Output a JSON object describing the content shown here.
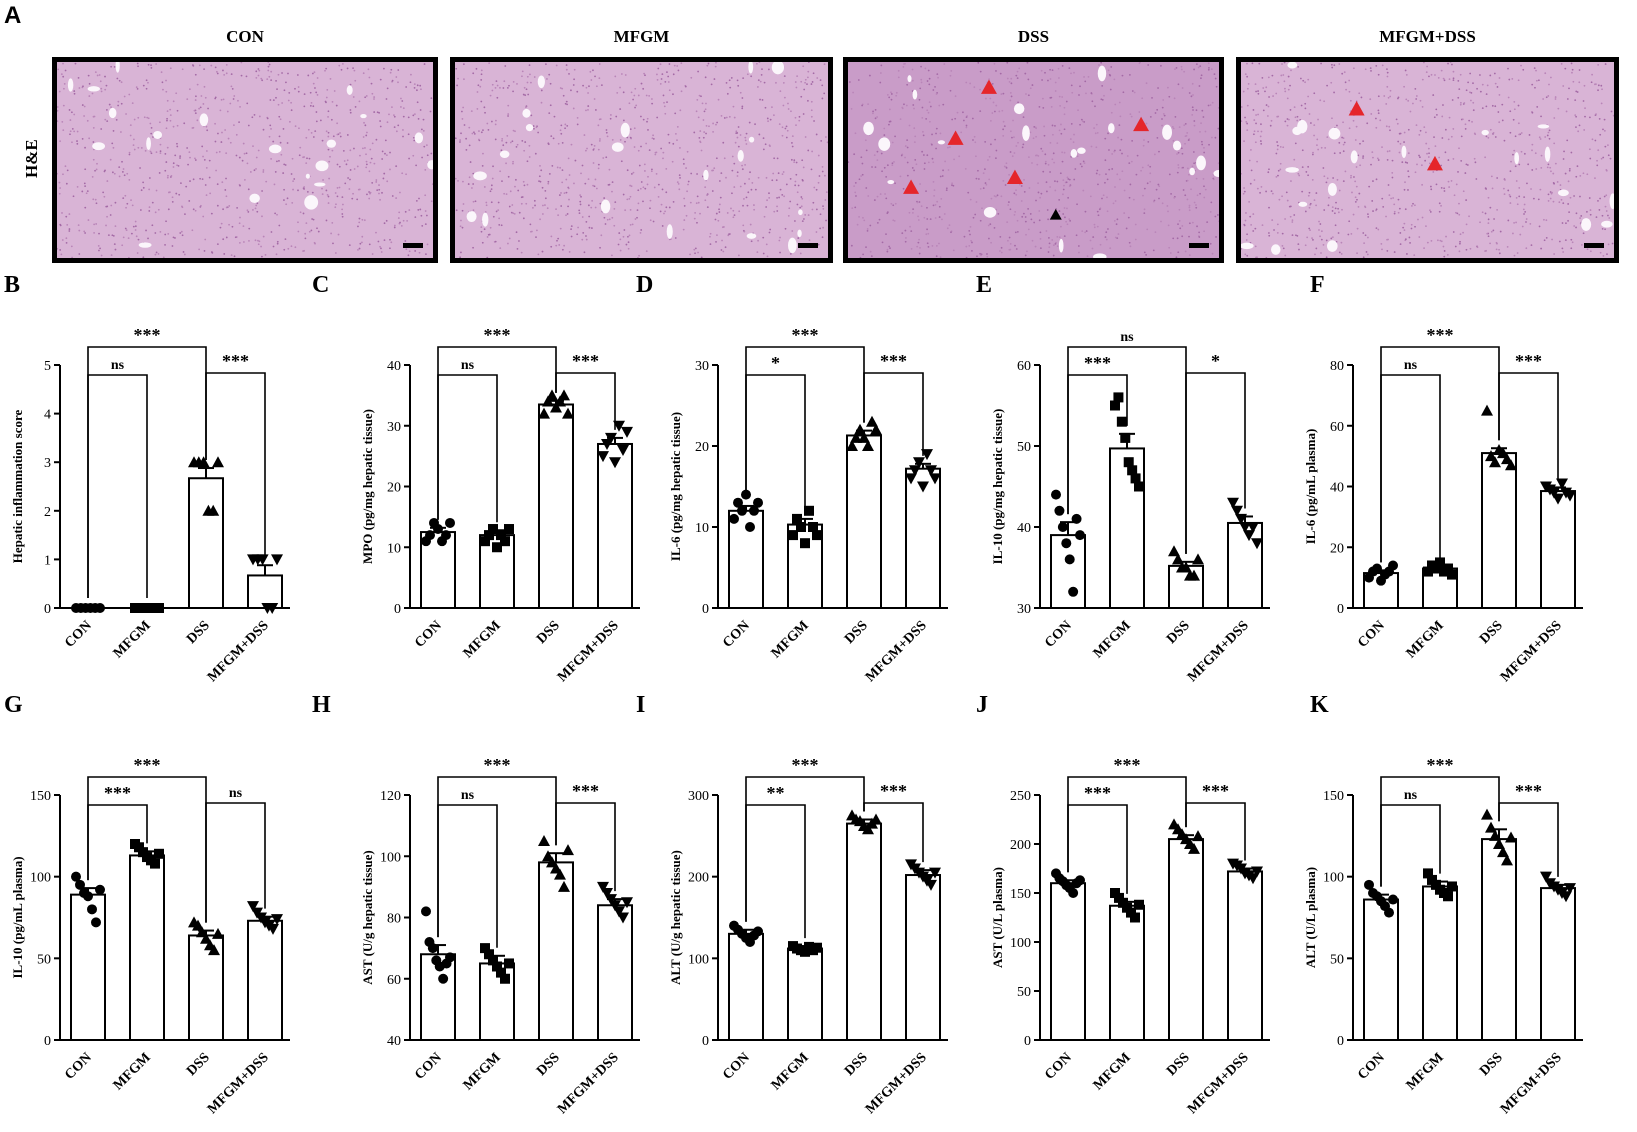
{
  "panel_a": {
    "label": "A",
    "row_label": "H&E",
    "images": [
      {
        "title": "CON",
        "red_markers": [],
        "black_markers": []
      },
      {
        "title": "MFGM",
        "red_markers": [],
        "black_markers": []
      },
      {
        "title": "DSS",
        "red_markers": [
          [
            0.38,
            0.13
          ],
          [
            0.29,
            0.39
          ],
          [
            0.79,
            0.32
          ],
          [
            0.45,
            0.59
          ],
          [
            0.17,
            0.64
          ]
        ],
        "black_markers": [
          [
            0.56,
            0.78
          ]
        ]
      },
      {
        "title": "MFGM+DSS",
        "red_markers": [
          [
            0.31,
            0.24
          ],
          [
            0.52,
            0.52
          ]
        ],
        "black_markers": []
      }
    ]
  },
  "chart_data": [
    {
      "id": "B",
      "type": "bar",
      "ylabel": "Hepatic inflammation score",
      "ylim": [
        0,
        5
      ],
      "ticks": [
        0,
        1,
        2,
        3,
        4,
        5
      ],
      "categories": [
        "CON",
        "MFGM",
        "DSS",
        "MFGM+DSS"
      ],
      "values": [
        0,
        0,
        2.67,
        0.67
      ],
      "sem": [
        0,
        0,
        0.21,
        0.21
      ],
      "points": [
        [
          0,
          0,
          0,
          0,
          0,
          0
        ],
        [
          0,
          0,
          0,
          0,
          0,
          0
        ],
        [
          3,
          3,
          3,
          2,
          2,
          3
        ],
        [
          1,
          1,
          1,
          0,
          0,
          1
        ]
      ],
      "sig": [
        {
          "a": 0,
          "b": 2,
          "label": "***",
          "level": 1
        },
        {
          "a": 0,
          "b": 1,
          "label": "ns",
          "level": 0
        },
        {
          "a": 2,
          "b": 3,
          "label": "***",
          "level": 0
        }
      ]
    },
    {
      "id": "C",
      "type": "bar",
      "ylabel": "MPO (pg/mg hepatic tissue)",
      "ylim": [
        0,
        40
      ],
      "ticks": [
        0,
        10,
        20,
        30,
        40
      ],
      "categories": [
        "CON",
        "MFGM",
        "DSS",
        "MFGM+DSS"
      ],
      "values": [
        12.5,
        12,
        33.5,
        27
      ],
      "sem": [
        0.7,
        0.8,
        0.6,
        1.0
      ],
      "points": [
        [
          11,
          12,
          14,
          13,
          11,
          12,
          14
        ],
        [
          11,
          12,
          13,
          10,
          12,
          11,
          13
        ],
        [
          32,
          34,
          35,
          33,
          34,
          35,
          32
        ],
        [
          25,
          27,
          28,
          24,
          30,
          26,
          29
        ]
      ],
      "sig": [
        {
          "a": 0,
          "b": 2,
          "label": "***",
          "level": 1
        },
        {
          "a": 0,
          "b": 1,
          "label": "ns",
          "level": 0
        },
        {
          "a": 2,
          "b": 3,
          "label": "***",
          "level": 0
        }
      ]
    },
    {
      "id": "D",
      "type": "bar",
      "ylabel": "IL-6 (pg/mg hepatic tissue)",
      "ylim": [
        0,
        30
      ],
      "ticks": [
        0,
        10,
        20,
        30
      ],
      "categories": [
        "CON",
        "MFGM",
        "DSS",
        "MFGM+DSS"
      ],
      "values": [
        12,
        10.3,
        21.3,
        17.2
      ],
      "sem": [
        0.6,
        0.7,
        0.6,
        0.6
      ],
      "points": [
        [
          11,
          13,
          12,
          14,
          10,
          12,
          13
        ],
        [
          9,
          11,
          10,
          8,
          12,
          10,
          9
        ],
        [
          20,
          21,
          22,
          21,
          20,
          23,
          22
        ],
        [
          16,
          17,
          18,
          15,
          19,
          17,
          16
        ]
      ],
      "sig": [
        {
          "a": 0,
          "b": 2,
          "label": "***",
          "level": 1
        },
        {
          "a": 0,
          "b": 1,
          "label": "*",
          "level": 0
        },
        {
          "a": 2,
          "b": 3,
          "label": "***",
          "level": 0
        }
      ]
    },
    {
      "id": "E",
      "type": "bar",
      "ylabel": "IL-10 (pg/mg hepatic tissue)",
      "ylim": [
        30,
        60
      ],
      "ticks": [
        30,
        40,
        50,
        60
      ],
      "categories": [
        "CON",
        "MFGM",
        "DSS",
        "MFGM+DSS"
      ],
      "values": [
        39,
        49.7,
        35.2,
        40.5
      ],
      "sem": [
        1.6,
        1.8,
        0.5,
        0.8
      ],
      "points": [
        [
          44,
          42,
          40,
          38,
          36,
          32,
          41,
          39
        ],
        [
          55,
          56,
          53,
          51,
          48,
          47,
          46,
          45
        ],
        [
          37,
          36,
          35,
          35,
          34,
          34,
          36
        ],
        [
          43,
          42,
          41,
          40,
          39,
          40,
          38
        ]
      ],
      "sig": [
        {
          "a": 0,
          "b": 2,
          "label": "ns",
          "level": 1
        },
        {
          "a": 0,
          "b": 1,
          "label": "***",
          "level": 0
        },
        {
          "a": 2,
          "b": 3,
          "label": "*",
          "level": 0
        }
      ]
    },
    {
      "id": "F",
      "type": "bar",
      "ylabel": "IL-6 (pg/mL plasma)",
      "ylim": [
        0,
        80
      ],
      "ticks": [
        0,
        20,
        40,
        60,
        80
      ],
      "categories": [
        "CON",
        "MFGM",
        "DSS",
        "MFGM+DSS"
      ],
      "values": [
        11.5,
        13,
        51,
        38.5
      ],
      "sem": [
        0.9,
        0.8,
        1.6,
        1.2
      ],
      "points": [
        [
          10,
          12,
          13,
          9,
          11,
          12,
          14
        ],
        [
          12,
          14,
          13,
          15,
          12,
          13,
          11
        ],
        [
          65,
          50,
          48,
          52,
          51,
          49,
          47
        ],
        [
          40,
          39,
          38,
          36,
          41,
          38,
          37
        ]
      ],
      "sig": [
        {
          "a": 0,
          "b": 2,
          "label": "***",
          "level": 1
        },
        {
          "a": 0,
          "b": 1,
          "label": "ns",
          "level": 0
        },
        {
          "a": 2,
          "b": 3,
          "label": "***",
          "level": 0
        }
      ]
    },
    {
      "id": "G",
      "type": "bar",
      "ylabel": "IL-10 (pg/mL plasma)",
      "ylim": [
        0,
        150
      ],
      "ticks": [
        0,
        50,
        100,
        150
      ],
      "categories": [
        "CON",
        "MFGM",
        "DSS",
        "MFGM+DSS"
      ],
      "values": [
        89,
        113,
        64,
        73
      ],
      "sem": [
        4,
        2.5,
        3,
        2.5
      ],
      "points": [
        [
          100,
          95,
          90,
          88,
          80,
          72,
          92
        ],
        [
          120,
          118,
          115,
          112,
          110,
          108,
          114
        ],
        [
          72,
          70,
          66,
          62,
          58,
          55,
          65
        ],
        [
          82,
          78,
          75,
          72,
          70,
          68,
          74
        ]
      ],
      "sig": [
        {
          "a": 0,
          "b": 2,
          "label": "***",
          "level": 1
        },
        {
          "a": 0,
          "b": 1,
          "label": "***",
          "level": 0
        },
        {
          "a": 2,
          "b": 3,
          "label": "ns",
          "level": 0
        }
      ]
    },
    {
      "id": "H",
      "type": "bar",
      "ylabel": "AST (U/g hepatic tissue)",
      "ylim": [
        40,
        120
      ],
      "ticks": [
        40,
        60,
        80,
        100,
        120
      ],
      "categories": [
        "CON",
        "MFGM",
        "DSS",
        "MFGM+DSS"
      ],
      "values": [
        68,
        65,
        98,
        84
      ],
      "sem": [
        3,
        2.5,
        3,
        2
      ],
      "points": [
        [
          82,
          72,
          70,
          66,
          64,
          60,
          65,
          67
        ],
        [
          70,
          68,
          66,
          64,
          62,
          60,
          65
        ],
        [
          105,
          100,
          98,
          96,
          94,
          90,
          102
        ],
        [
          90,
          88,
          86,
          84,
          82,
          80,
          85
        ]
      ],
      "sig": [
        {
          "a": 0,
          "b": 2,
          "label": "***",
          "level": 1
        },
        {
          "a": 0,
          "b": 1,
          "label": "ns",
          "level": 0
        },
        {
          "a": 2,
          "b": 3,
          "label": "***",
          "level": 0
        }
      ]
    },
    {
      "id": "I",
      "type": "bar",
      "ylabel": "ALT (U/g hepatic tissue)",
      "ylim": [
        0,
        300
      ],
      "ticks": [
        0,
        100,
        200,
        300
      ],
      "categories": [
        "CON",
        "MFGM",
        "DSS",
        "MFGM+DSS"
      ],
      "values": [
        130,
        112,
        265,
        202
      ],
      "sem": [
        5,
        3,
        5,
        6
      ],
      "points": [
        [
          140,
          135,
          130,
          125,
          120,
          128,
          133
        ],
        [
          115,
          112,
          110,
          108,
          114,
          110,
          113
        ],
        [
          275,
          270,
          268,
          262,
          258,
          265,
          270
        ],
        [
          215,
          210,
          205,
          200,
          195,
          190,
          205
        ]
      ],
      "sig": [
        {
          "a": 0,
          "b": 2,
          "label": "***",
          "level": 1
        },
        {
          "a": 0,
          "b": 1,
          "label": "**",
          "level": 0
        },
        {
          "a": 2,
          "b": 3,
          "label": "***",
          "level": 0
        }
      ]
    },
    {
      "id": "J",
      "type": "bar",
      "ylabel": "AST (U/L plasma)",
      "ylim": [
        0,
        250
      ],
      "ticks": [
        0,
        50,
        100,
        150,
        200,
        250
      ],
      "categories": [
        "CON",
        "MFGM",
        "DSS",
        "MFGM+DSS"
      ],
      "values": [
        160,
        137,
        205,
        172
      ],
      "sem": [
        3,
        4,
        4,
        3
      ],
      "points": [
        [
          170,
          165,
          162,
          158,
          155,
          150,
          160,
          163
        ],
        [
          150,
          145,
          140,
          135,
          130,
          125,
          138
        ],
        [
          220,
          215,
          210,
          205,
          200,
          195,
          208
        ],
        [
          180,
          178,
          175,
          170,
          168,
          165,
          172
        ]
      ],
      "sig": [
        {
          "a": 0,
          "b": 2,
          "label": "***",
          "level": 1
        },
        {
          "a": 0,
          "b": 1,
          "label": "***",
          "level": 0
        },
        {
          "a": 2,
          "b": 3,
          "label": "***",
          "level": 0
        }
      ]
    },
    {
      "id": "K",
      "type": "bar",
      "ylabel": "ALT (U/L plasma)",
      "ylim": [
        0,
        150
      ],
      "ticks": [
        0,
        50,
        100,
        150
      ],
      "categories": [
        "CON",
        "MFGM",
        "DSS",
        "MFGM+DSS"
      ],
      "values": [
        86,
        94,
        123,
        93
      ],
      "sem": [
        3,
        3,
        6,
        2
      ],
      "points": [
        [
          95,
          90,
          88,
          85,
          82,
          78,
          86
        ],
        [
          102,
          98,
          95,
          92,
          90,
          88,
          94
        ],
        [
          138,
          130,
          125,
          120,
          115,
          110,
          124
        ],
        [
          100,
          96,
          94,
          92,
          90,
          88,
          93
        ]
      ],
      "sig": [
        {
          "a": 0,
          "b": 2,
          "label": "***",
          "level": 1
        },
        {
          "a": 0,
          "b": 1,
          "label": "ns",
          "level": 0
        },
        {
          "a": 2,
          "b": 3,
          "label": "***",
          "level": 0
        }
      ]
    }
  ],
  "markers": [
    "circle",
    "square",
    "triangle-up",
    "triangle-down"
  ]
}
